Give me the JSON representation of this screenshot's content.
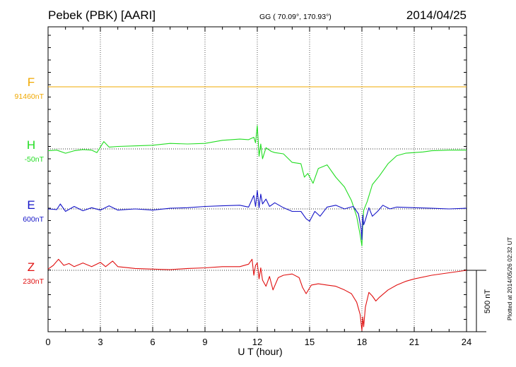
{
  "header": {
    "station": "Pebek (PBK)  [AARI]",
    "coords": "GG ( 70.09°, 170.93°)",
    "date": "2014/04/25"
  },
  "footer": {
    "plotted": "Plotted at 2014/05/26 02:32 UT"
  },
  "chart_data": {
    "type": "line",
    "xlabel": "U T (hour)",
    "xlim": [
      0,
      24
    ],
    "xticks": [
      0,
      3,
      6,
      9,
      12,
      15,
      18,
      21,
      24
    ],
    "grid": true,
    "scale_bar": {
      "label": "500 nT",
      "value": 500
    },
    "colors": {
      "F": "#f0a800",
      "H": "#22dd22",
      "E": "#1515c8",
      "Z": "#e01010"
    },
    "channels": [
      {
        "id": "F",
        "name": "F",
        "baseline": "91460nT",
        "baseline_nT": 91460
      },
      {
        "id": "H",
        "name": "H",
        "baseline": "-50nT",
        "baseline_nT": -50
      },
      {
        "id": "E",
        "name": "E",
        "baseline": "600nT",
        "baseline_nT": 600
      },
      {
        "id": "Z",
        "name": "Z",
        "baseline": "230nT",
        "baseline_nT": 230
      }
    ],
    "series": [
      {
        "name": "F",
        "x": [
          0,
          24
        ],
        "values": [
          0,
          0
        ]
      },
      {
        "name": "H",
        "x": [
          0,
          0.5,
          1,
          1.5,
          2,
          2.5,
          2.8,
          3.2,
          3.5,
          4,
          5,
          6,
          7,
          8,
          9,
          10,
          11,
          11.5,
          11.8,
          11.9,
          12.0,
          12.1,
          12.2,
          12.3,
          12.5,
          12.8,
          13,
          13.5,
          14,
          14.5,
          14.7,
          14.9,
          15.2,
          15.5,
          16,
          16.5,
          17,
          17.4,
          17.7,
          17.9,
          18.0,
          18.05,
          18.1,
          18.3,
          18.6,
          19,
          19.5,
          20,
          20.5,
          21,
          21.5,
          22,
          23,
          24
        ],
        "values": [
          -15,
          -10,
          -35,
          -15,
          -5,
          -10,
          -30,
          60,
          15,
          20,
          25,
          30,
          45,
          40,
          45,
          70,
          80,
          75,
          95,
          50,
          190,
          -60,
          40,
          -80,
          10,
          -20,
          -30,
          -40,
          -110,
          -120,
          -230,
          -200,
          -280,
          -160,
          -130,
          -230,
          -310,
          -420,
          -550,
          -700,
          -790,
          -620,
          -500,
          -430,
          -290,
          -220,
          -120,
          -55,
          -35,
          -30,
          -25,
          -15,
          -10,
          -10
        ]
      },
      {
        "name": "E",
        "x": [
          0,
          0.5,
          0.7,
          1,
          1.5,
          2,
          2.5,
          3,
          3.5,
          4,
          5,
          6,
          7,
          8,
          9,
          10,
          11,
          11.5,
          11.8,
          11.9,
          12.0,
          12.1,
          12.2,
          12.3,
          12.5,
          12.7,
          13,
          13.5,
          14,
          14.5,
          14.8,
          15.0,
          15.3,
          15.6,
          16,
          16.5,
          17,
          17.5,
          17.8,
          17.95,
          18.0,
          18.05,
          18.1,
          18.2,
          18.4,
          18.6,
          18.9,
          19.2,
          19.6,
          20,
          21,
          22,
          23,
          24
        ],
        "values": [
          0,
          -5,
          40,
          -20,
          20,
          -15,
          10,
          -10,
          25,
          -10,
          0,
          -10,
          5,
          10,
          20,
          25,
          30,
          15,
          110,
          20,
          150,
          10,
          120,
          40,
          80,
          20,
          50,
          10,
          -20,
          -20,
          -80,
          -100,
          -20,
          -60,
          15,
          30,
          0,
          20,
          -40,
          -160,
          -250,
          -50,
          -130,
          -90,
          10,
          -60,
          -20,
          30,
          0,
          15,
          10,
          5,
          0,
          5
        ]
      },
      {
        "name": "Z",
        "x": [
          0,
          0.3,
          0.6,
          0.9,
          1.2,
          1.5,
          2,
          2.5,
          3,
          3.3,
          3.7,
          4,
          5,
          6,
          7,
          8,
          9,
          10,
          11,
          11.5,
          11.7,
          11.8,
          11.9,
          12.0,
          12.1,
          12.2,
          12.3,
          12.5,
          12.7,
          12.9,
          13.2,
          13.5,
          14,
          14.4,
          14.6,
          14.8,
          15.1,
          15.5,
          16,
          16.5,
          17,
          17.4,
          17.7,
          17.9,
          18.0,
          18.05,
          18.1,
          18.2,
          18.4,
          18.6,
          18.8,
          19,
          19.5,
          20,
          20.5,
          21,
          22,
          23,
          24
        ],
        "values": [
          10,
          40,
          90,
          40,
          55,
          30,
          60,
          30,
          65,
          30,
          75,
          30,
          15,
          10,
          5,
          15,
          20,
          30,
          30,
          50,
          90,
          -40,
          40,
          60,
          -70,
          20,
          -80,
          -130,
          -50,
          -160,
          -60,
          -40,
          -30,
          -60,
          -140,
          -190,
          -120,
          -110,
          -120,
          -130,
          -160,
          -190,
          -260,
          -360,
          -490,
          -380,
          -460,
          -300,
          -180,
          -210,
          -250,
          -220,
          -160,
          -120,
          -90,
          -70,
          -40,
          -20,
          0
        ]
      }
    ]
  }
}
